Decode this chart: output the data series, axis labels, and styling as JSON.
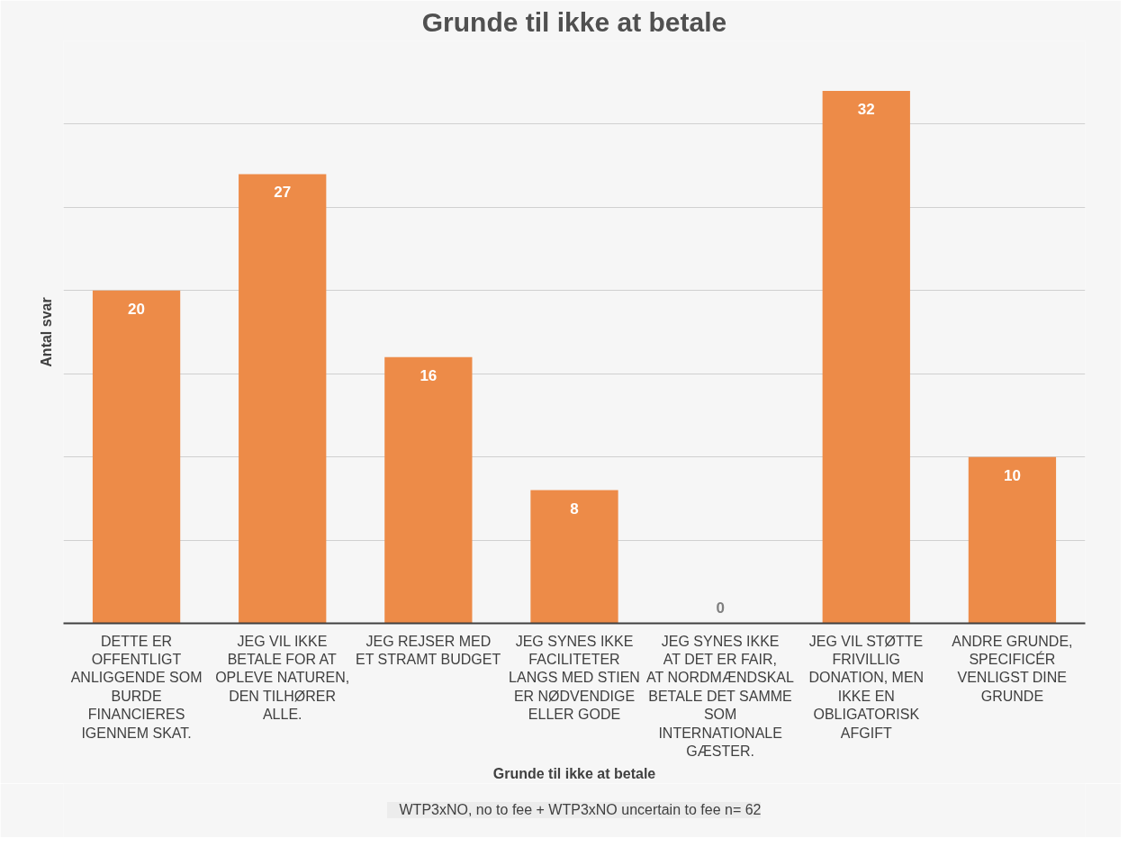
{
  "chart_data": {
    "type": "bar",
    "title": "Grunde til ikke at betale",
    "xlabel": "Grunde til ikke at betale",
    "ylabel": "Antal svar",
    "categories": [
      "DETTE ER OFFENTLIGT ANLIGGENDE SOM BURDE FINANCIERES IGENNEM SKAT.",
      "JEG VIL IKKE BETALE FOR AT OPLEVE NATUREN, DEN TILHØRER ALLE.",
      "JEG REJSER MED ET STRAMT BUDGET",
      "JEG SYNES IKKE FACILITETER LANGS MED STIEN ER NØDVENDIGE ELLER GODE",
      "JEG SYNES IKKE AT DET ER FAIR, AT NORDMÆNDSKAL BETALE DET SAMME SOM INTERNATIONALE GÆSTER.",
      "JEG VIL STØTTE FRIVILLIG DONATION, MEN IKKE EN OBLIGATORISK AFGIFT",
      "ANDRE GRUNDE, SPECIFICÉR VENLIGST DINE GRUNDE"
    ],
    "series": [
      {
        "name": "WTP3xNO, no to fee + WTP3xNO uncertain to fee n= 62",
        "color": "#ed8b48",
        "values": [
          20,
          27,
          16,
          8,
          0,
          32,
          10
        ]
      }
    ],
    "ylim": [
      0,
      35
    ],
    "yticks": [
      {
        "value": 0,
        "label": null
      },
      {
        "value": 5,
        "label": null
      },
      {
        "value": 10,
        "label": null
      },
      {
        "value": 15,
        "label": null
      },
      {
        "value": 20,
        "label": null
      },
      {
        "value": 25,
        "label": null
      },
      {
        "value": 30,
        "label": null
      },
      {
        "value": 35,
        "label": null
      }
    ],
    "tick_labels": "x",
    "grid": "y",
    "legend": "bottom",
    "data_labels": true
  }
}
